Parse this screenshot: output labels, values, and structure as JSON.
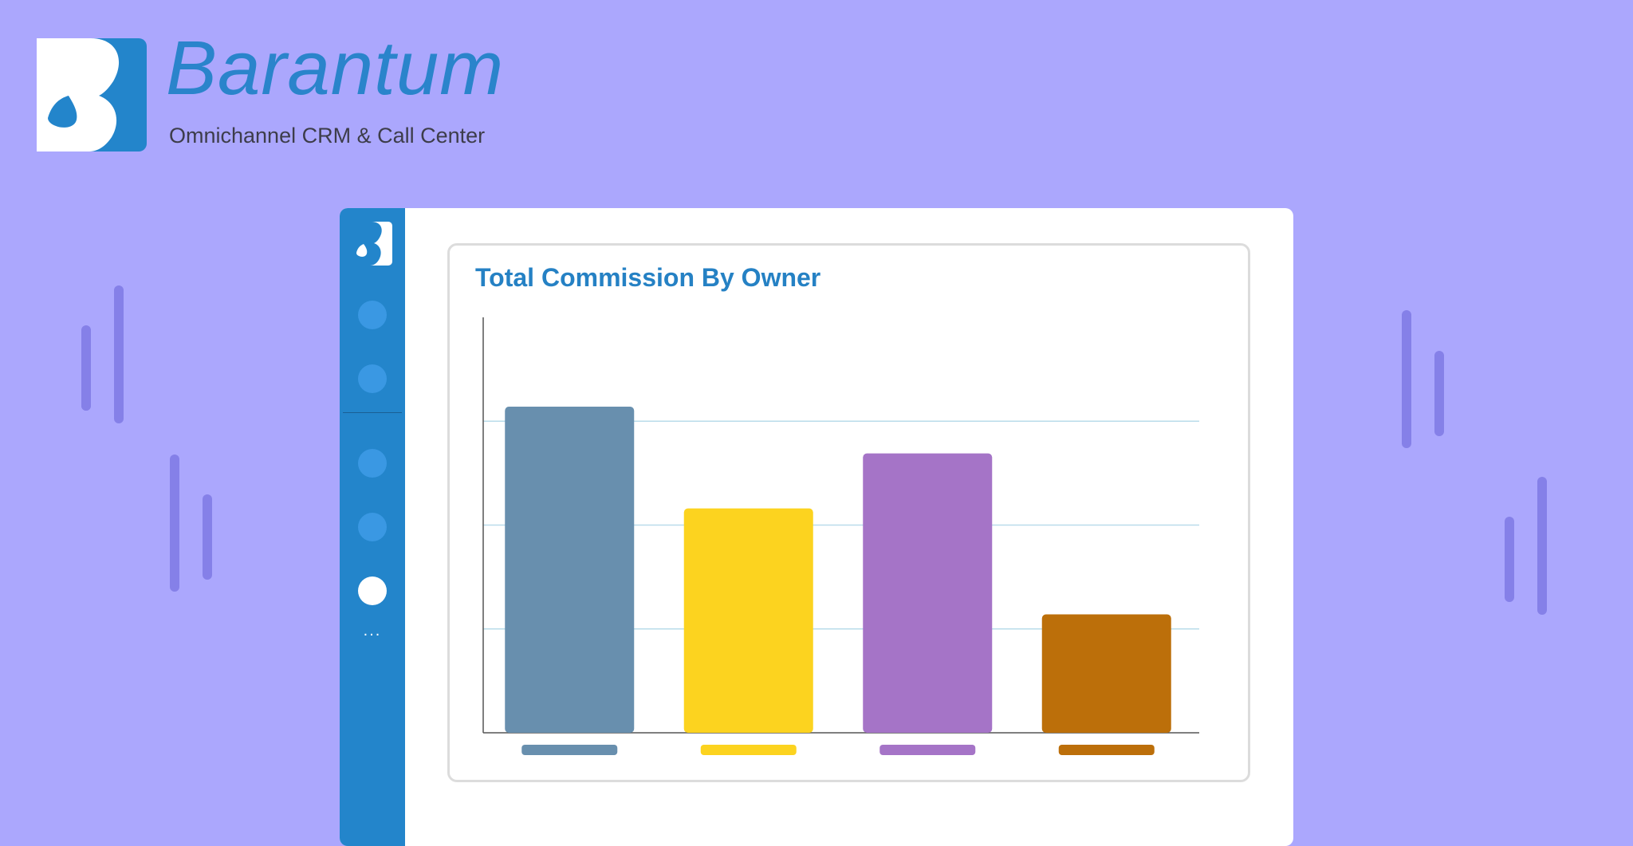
{
  "brand": {
    "name": "Barantum",
    "tagline": "Omnichannel CRM & Call Center",
    "color": "#2385cb"
  },
  "sidebar": {
    "items": [
      {
        "icon": "nav-dot-icon",
        "active": false
      },
      {
        "icon": "nav-dot-icon",
        "active": false
      },
      {
        "icon": "nav-dot-icon",
        "active": false
      },
      {
        "icon": "nav-dot-icon",
        "active": false
      },
      {
        "icon": "nav-dot-icon",
        "active": true
      }
    ],
    "more_label": "..."
  },
  "chart_data": {
    "type": "bar",
    "title": "Total Commission By Owner",
    "xlabel": "",
    "ylabel": "",
    "ylim": [
      0,
      4
    ],
    "grid": true,
    "gridlines": [
      1,
      2,
      3
    ],
    "categories": [
      "",
      "",
      "",
      ""
    ],
    "values": [
      3.14,
      2.16,
      2.69,
      1.14
    ],
    "colors": [
      "#688fae",
      "#fcd31f",
      "#a574c7",
      "#bc6f0a"
    ]
  }
}
